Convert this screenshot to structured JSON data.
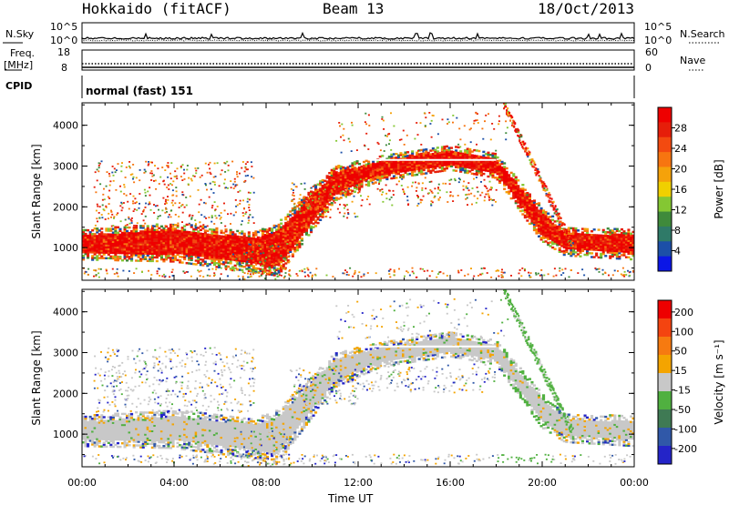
{
  "header": {
    "station": "Hokkaido (fitACF)",
    "beam": "Beam 13",
    "date": "18/Oct/2013"
  },
  "sky_panel": {
    "left_label": "N.Sky",
    "right_label": "N.Search",
    "left_ticks": [
      "10^5",
      "10^0"
    ],
    "right_ticks": [
      "10^5",
      "10^0"
    ]
  },
  "freq_panel": {
    "left_label": "Freq.",
    "left_unit": "[MHz]",
    "right_label": "Nave",
    "left_ticks": [
      "18",
      "8"
    ],
    "right_ticks": [
      "60",
      "0"
    ]
  },
  "cpid_panel": {
    "label": "CPID",
    "value": "normal (fast) 151"
  },
  "chart_data": [
    {
      "type": "heatmap",
      "title": "",
      "quantity": "Power",
      "ylabel": "Slant Range [km]",
      "ylim": [
        200,
        4550
      ],
      "yticks": [
        "1000",
        "2000",
        "3000",
        "4000"
      ],
      "xlim": [
        "00:00",
        "24:00"
      ],
      "colorbar": {
        "label": "Power [dB]",
        "ticks": [
          "4",
          "8",
          "12",
          "16",
          "20",
          "24",
          "28"
        ],
        "colors": [
          "#0b16e6",
          "#1c4fa8",
          "#2f7a68",
          "#3f8a3b",
          "#84c733",
          "#f0d000",
          "#f5a20a",
          "#f77510",
          "#f34a10",
          "#e61e0a",
          "#ee0000"
        ]
      },
      "band_ranges_km": [
        {
          "time": "00:00",
          "bottom": 750,
          "top": 1350
        },
        {
          "time": "04:00",
          "bottom": 700,
          "top": 1500
        },
        {
          "time": "07:30",
          "bottom": 450,
          "top": 1300
        },
        {
          "time": "08:30",
          "bottom": 350,
          "top": 1500
        },
        {
          "time": "11:00",
          "bottom": 2200,
          "top": 2900
        },
        {
          "time": "13:00",
          "bottom": 2700,
          "top": 3150
        },
        {
          "time": "16:00",
          "bottom": 2950,
          "top": 3400
        },
        {
          "time": "18:00",
          "bottom": 2750,
          "top": 3200
        },
        {
          "time": "20:00",
          "bottom": 1200,
          "top": 1900
        },
        {
          "time": "21:00",
          "bottom": 850,
          "top": 1400
        },
        {
          "time": "24:00",
          "bottom": 750,
          "top": 1350
        }
      ]
    },
    {
      "type": "heatmap",
      "title": "",
      "quantity": "Velocity",
      "ylabel": "Slant Range [km]",
      "ylim": [
        200,
        4550
      ],
      "yticks": [
        "1000",
        "2000",
        "3000",
        "4000"
      ],
      "xlim": [
        "00:00",
        "24:00"
      ],
      "colorbar": {
        "label": "Velocity [m s⁻¹]",
        "ticks": [
          "200",
          "100",
          "50",
          "15",
          "-15",
          "-50",
          "-100",
          "-200"
        ],
        "colors": [
          "#2424c8",
          "#3058a8",
          "#3f7a54",
          "#50b040",
          "#c8c8c8",
          "#f4a400",
          "#f67a10",
          "#f44410",
          "#ee0000"
        ]
      }
    }
  ],
  "xaxis": {
    "label": "Time UT",
    "ticks": [
      "00:00",
      "04:00",
      "08:00",
      "12:00",
      "16:00",
      "20:00",
      "00:00"
    ]
  }
}
